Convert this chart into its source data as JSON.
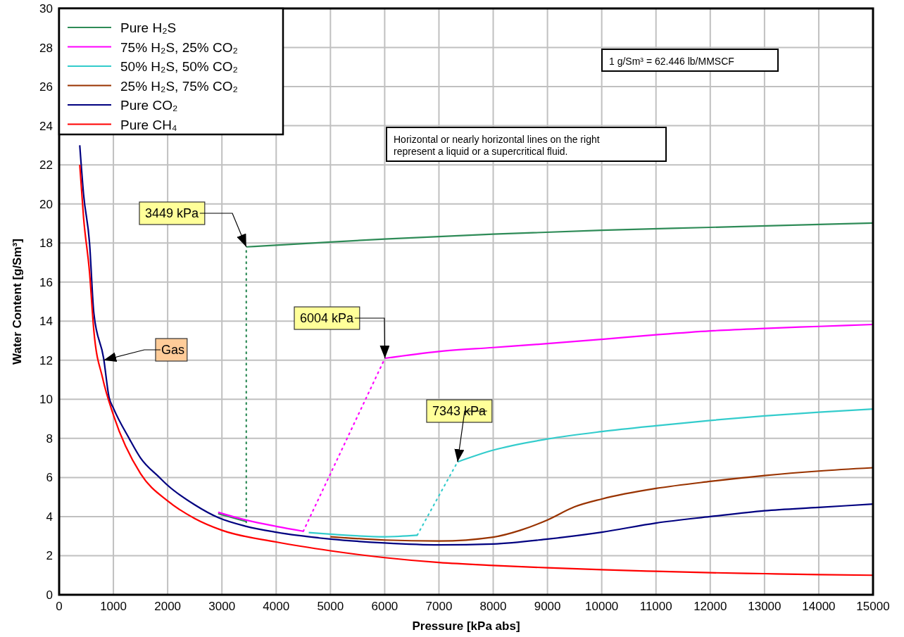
{
  "chart_data": {
    "type": "line",
    "xlabel": "Pressure [kPa abs]",
    "ylabel": "Water Content [g/Sm³]",
    "xlim": [
      0,
      15000
    ],
    "xticks": [
      0,
      1000,
      2000,
      3000,
      4000,
      5000,
      6000,
      7000,
      8000,
      9000,
      10000,
      11000,
      12000,
      13000,
      14000,
      15000
    ],
    "ylim": [
      0,
      30
    ],
    "yticks": [
      0,
      2,
      4,
      6,
      8,
      10,
      12,
      14,
      16,
      18,
      20,
      22,
      24,
      26,
      28,
      30
    ],
    "grid": true,
    "legend": "top left",
    "line_style": "solid",
    "series": [
      {
        "name": "Pure H₂S",
        "color": "#2e8b57",
        "x": [
          2930,
          3449
        ],
        "values": [
          4.15,
          3.75
        ]
      },
      {
        "color": "#2e8b57",
        "line_style": "dotted",
        "x": [
          3449,
          3449
        ],
        "values": [
          3.7,
          17.8
        ]
      },
      {
        "color": "#2e8b57",
        "x": [
          3449,
          5000,
          6000,
          8000,
          10000,
          12000,
          14000,
          15000
        ],
        "values": [
          17.8,
          18.05,
          18.2,
          18.45,
          18.65,
          18.8,
          18.95,
          19.02
        ]
      },
      {
        "name": "75% H₂S, 25% CO₂",
        "color": "#ff00ff",
        "x": [
          2930,
          3449,
          4000,
          4500
        ],
        "values": [
          4.22,
          3.82,
          3.5,
          3.25
        ]
      },
      {
        "color": "#ff00ff",
        "line_style": "dotted",
        "x": [
          4500,
          6004
        ],
        "values": [
          3.25,
          12.1
        ]
      },
      {
        "color": "#ff00ff",
        "x": [
          6004,
          7000,
          8000,
          9000,
          10000,
          11000,
          12000,
          13000,
          14000,
          15000
        ],
        "values": [
          12.1,
          12.45,
          12.65,
          12.85,
          13.07,
          13.3,
          13.5,
          13.63,
          13.73,
          13.83
        ]
      },
      {
        "name": "50% H₂S, 50% CO₂",
        "color": "#33cccc",
        "x": [
          4600,
          5000,
          6000,
          6600
        ],
        "values": [
          3.18,
          3.1,
          2.97,
          3.05
        ]
      },
      {
        "color": "#33cccc",
        "line_style": "dotted",
        "x": [
          6600,
          7343
        ],
        "values": [
          3.05,
          6.8
        ]
      },
      {
        "color": "#33cccc",
        "x": [
          7343,
          8000,
          9000,
          10000,
          11000,
          12000,
          13000,
          14000,
          15000
        ],
        "values": [
          6.8,
          7.4,
          7.97,
          8.35,
          8.65,
          8.92,
          9.15,
          9.34,
          9.5
        ]
      },
      {
        "name": "25% H₂S, 75% CO₂",
        "color": "#993300",
        "x": [
          5000,
          6000,
          7000,
          8000,
          8500,
          9000,
          9500,
          10000,
          11000,
          12000,
          13000,
          14000,
          15000
        ],
        "values": [
          2.97,
          2.8,
          2.75,
          2.95,
          3.3,
          3.83,
          4.5,
          4.9,
          5.44,
          5.8,
          6.1,
          6.33,
          6.5
        ]
      },
      {
        "name": "Pure CO₂",
        "color": "#000080",
        "x": [
          380,
          450,
          560,
          640,
          820,
          920,
          1000,
          1290,
          1500,
          1850,
          2000,
          2500,
          2930,
          3449,
          4000,
          5000,
          6000,
          7000,
          8000,
          9000,
          10000,
          11000,
          12000,
          13000,
          14000,
          15000
        ],
        "values": [
          23,
          20.5,
          18,
          14.4,
          12.1,
          10.1,
          9.55,
          8,
          7,
          6,
          5.6,
          4.6,
          3.95,
          3.5,
          3.2,
          2.85,
          2.65,
          2.55,
          2.6,
          2.85,
          3.2,
          3.67,
          4.0,
          4.3,
          4.47,
          4.64
        ]
      },
      {
        "name": "Pure CH₄",
        "color": "#ff0000",
        "x": [
          380,
          450,
          560,
          640,
          800,
          1000,
          1500,
          2000,
          2500,
          3000,
          4000,
          5000,
          6000,
          7000,
          8000,
          9000,
          10000,
          11000,
          12000,
          13000,
          14000,
          15000
        ],
        "values": [
          22,
          19.3,
          16.5,
          13.5,
          11.1,
          9.2,
          6.2,
          4.8,
          3.9,
          3.3,
          2.7,
          2.25,
          1.9,
          1.65,
          1.5,
          1.38,
          1.28,
          1.2,
          1.13,
          1.08,
          1.03,
          1.0
        ]
      }
    ],
    "annotations": [
      {
        "text": "3449 kPa",
        "x": 3449,
        "y": 17.8
      },
      {
        "text": "6004 kPa",
        "x": 6004,
        "y": 12.1
      },
      {
        "text": "7343 kPa",
        "x": 7343,
        "y": 6.8
      },
      {
        "text": "Gas",
        "x": 820,
        "y": 12
      },
      "1 g/Sm³ = 62.446 lb/MMSCF",
      "Horizontal or nearly horizontal lines on the right represent a liquid or a supercritical fluid."
    ]
  }
}
